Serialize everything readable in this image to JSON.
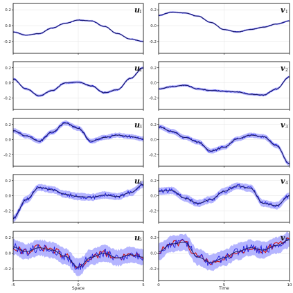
{
  "chart_data": {
    "type": "line",
    "layout": "5 rows x 2 columns of panels with shared axes per column",
    "colors": {
      "mean": "#1a1a5e",
      "band": "#9c9cff",
      "samples": "#1f1fe0",
      "truth": "#d01010",
      "grid": "#e6e6e6"
    },
    "columns": [
      {
        "xlabel": "Space",
        "xlim": [
          -5,
          5
        ],
        "xticks": [
          "-5",
          "0",
          "5"
        ],
        "panels": [
          {
            "label": "u",
            "sub": "1",
            "ylim": [
              -0.35,
              0.28
            ],
            "yticks": [
              "0.2",
              "0.0",
              "-0.2"
            ],
            "noise": 0.006,
            "band": 0.012,
            "x": [
              -5,
              -4,
              -3,
              -2,
              -1,
              0,
              1,
              2,
              3,
              4,
              5
            ],
            "mean": [
              -0.08,
              -0.12,
              -0.1,
              -0.03,
              0.03,
              0.07,
              0.06,
              -0.01,
              -0.1,
              -0.17,
              -0.2
            ]
          },
          {
            "label": "u",
            "sub": "2",
            "ylim": [
              -0.35,
              0.28
            ],
            "yticks": [
              "0.2",
              "0.0",
              "-0.2"
            ],
            "noise": 0.01,
            "band": 0.018,
            "x": [
              -5,
              -4,
              -3,
              -2,
              -1,
              0,
              1,
              2,
              3,
              4,
              5
            ],
            "mean": [
              0.05,
              -0.08,
              -0.17,
              -0.1,
              0.0,
              0.01,
              -0.04,
              -0.13,
              -0.09,
              0.06,
              0.2
            ]
          },
          {
            "label": "u",
            "sub": "3",
            "ylim": [
              -0.35,
              0.28
            ],
            "yticks": [
              "0.2",
              "0.0",
              "-0.2"
            ],
            "noise": 0.018,
            "band": 0.035,
            "x": [
              -5,
              -4,
              -3,
              -2,
              -1,
              0,
              1,
              2,
              3,
              4,
              5
            ],
            "mean": [
              0.12,
              0.05,
              -0.02,
              0.1,
              0.22,
              0.15,
              -0.02,
              0.03,
              0.06,
              0.04,
              0.01
            ]
          },
          {
            "label": "u",
            "sub": "4",
            "ylim": [
              -0.35,
              0.28
            ],
            "yticks": [
              "0.2",
              "0.0",
              "-0.2"
            ],
            "noise": 0.025,
            "band": 0.05,
            "x": [
              -5,
              -4,
              -3,
              -2,
              -1,
              0,
              1,
              2,
              3,
              4,
              5
            ],
            "mean": [
              -0.3,
              -0.05,
              0.11,
              0.08,
              0.02,
              -0.01,
              -0.02,
              0.01,
              -0.01,
              0.04,
              0.15
            ]
          },
          {
            "label": "u",
            "sub": "5",
            "ylim": [
              -0.35,
              0.28
            ],
            "yticks": [
              "0.2",
              "0.0",
              "-0.2"
            ],
            "noise": 0.055,
            "band": 0.11,
            "truth": true,
            "x": [
              -5,
              -4,
              -3,
              -2,
              -1,
              0,
              1,
              2,
              3,
              4,
              5
            ],
            "mean": [
              0.08,
              0.02,
              0.07,
              0.04,
              -0.04,
              -0.18,
              -0.05,
              0.0,
              -0.06,
              -0.02,
              -0.05
            ]
          }
        ]
      },
      {
        "xlabel": "Time",
        "xlim": [
          0,
          10
        ],
        "xticks": [
          "0",
          "5",
          "10"
        ],
        "panels": [
          {
            "label": "v",
            "sub": "1",
            "ylim": [
              -0.35,
              0.28
            ],
            "yticks": [
              "0.2",
              "0.0",
              "-0.2"
            ],
            "noise": 0.006,
            "band": 0.012,
            "x": [
              0,
              1,
              2,
              3,
              4,
              5,
              6,
              7,
              8,
              9,
              10
            ],
            "mean": [
              0.13,
              0.17,
              0.16,
              0.12,
              0.04,
              -0.05,
              -0.08,
              -0.05,
              -0.02,
              0.02,
              0.06
            ]
          },
          {
            "label": "v",
            "sub": "2",
            "ylim": [
              -0.35,
              0.28
            ],
            "yticks": [
              "0.2",
              "0.0",
              "-0.2"
            ],
            "noise": 0.01,
            "band": 0.018,
            "x": [
              0,
              1,
              2,
              3,
              4,
              5,
              6,
              7,
              8,
              9,
              10
            ],
            "mean": [
              -0.08,
              -0.05,
              -0.03,
              -0.08,
              -0.1,
              -0.11,
              -0.12,
              -0.15,
              -0.16,
              -0.08,
              0.08
            ]
          },
          {
            "label": "v",
            "sub": "3",
            "ylim": [
              -0.35,
              0.28
            ],
            "yticks": [
              "0.2",
              "0.0",
              "-0.2"
            ],
            "noise": 0.018,
            "band": 0.035,
            "x": [
              0,
              1,
              2,
              3,
              4,
              5,
              6,
              7,
              8,
              9,
              10
            ],
            "mean": [
              0.17,
              0.11,
              0.03,
              -0.03,
              -0.15,
              -0.1,
              0.01,
              0.06,
              0.04,
              -0.08,
              -0.32
            ]
          },
          {
            "label": "v",
            "sub": "4",
            "ylim": [
              -0.35,
              0.28
            ],
            "yticks": [
              "0.2",
              "0.0",
              "-0.2"
            ],
            "noise": 0.025,
            "band": 0.05,
            "x": [
              0,
              1,
              2,
              3,
              4,
              5,
              6,
              7,
              8,
              9,
              10
            ],
            "mean": [
              0.06,
              0.07,
              -0.03,
              -0.1,
              -0.05,
              0.06,
              0.13,
              0.1,
              -0.1,
              -0.13,
              0.0
            ]
          },
          {
            "label": "v",
            "sub": "5",
            "ylim": [
              -0.35,
              0.28
            ],
            "yticks": [
              "0.2",
              "0.0",
              "-0.2"
            ],
            "noise": 0.055,
            "band": 0.11,
            "truth": true,
            "x": [
              0,
              1,
              2,
              3,
              4,
              5,
              6,
              7,
              8,
              9,
              10
            ],
            "mean": [
              0.02,
              0.12,
              0.14,
              -0.05,
              -0.12,
              -0.06,
              0.02,
              0.07,
              0.04,
              0.1,
              0.17
            ]
          }
        ]
      }
    ]
  }
}
